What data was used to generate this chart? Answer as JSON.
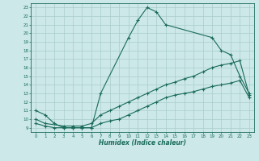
{
  "title": "",
  "xlabel": "Humidex (Indice chaleur)",
  "bg_color": "#cce8e8",
  "line_color": "#1a6b5a",
  "grid_color": "#aacccc",
  "xlim": [
    -0.5,
    23.5
  ],
  "ylim": [
    8.5,
    23.5
  ],
  "xticks": [
    0,
    1,
    2,
    3,
    4,
    5,
    6,
    7,
    8,
    9,
    10,
    11,
    12,
    13,
    14,
    15,
    16,
    17,
    18,
    19,
    20,
    21,
    22,
    23
  ],
  "yticks": [
    9,
    10,
    11,
    12,
    13,
    14,
    15,
    16,
    17,
    18,
    19,
    20,
    21,
    22,
    23
  ],
  "line1_x": [
    0,
    1,
    2,
    3,
    4,
    5,
    6,
    7,
    10,
    11,
    12,
    13,
    14,
    19,
    20,
    21,
    22,
    23
  ],
  "line1_y": [
    11,
    10.5,
    9.5,
    9,
    9,
    9,
    9,
    13,
    19.5,
    21.5,
    23,
    22.5,
    21,
    19.5,
    18,
    17.5,
    15,
    13
  ],
  "line2_x": [
    0,
    1,
    3,
    4,
    5,
    6,
    7,
    8,
    9,
    10,
    11,
    12,
    13,
    14,
    15,
    16,
    17,
    18,
    19,
    20,
    21,
    22,
    23
  ],
  "line2_y": [
    10,
    9.5,
    9.2,
    9.2,
    9.2,
    9.5,
    10.5,
    11,
    11.5,
    12,
    12.5,
    13,
    13.5,
    14,
    14.3,
    14.7,
    15,
    15.5,
    16,
    16.3,
    16.5,
    16.8,
    12.8
  ],
  "line3_x": [
    0,
    1,
    2,
    3,
    4,
    5,
    6,
    7,
    8,
    9,
    10,
    11,
    12,
    13,
    14,
    15,
    16,
    17,
    18,
    19,
    20,
    21,
    22,
    23
  ],
  "line3_y": [
    9.5,
    9.2,
    9.0,
    9.0,
    9.0,
    9.0,
    9.0,
    9.5,
    9.8,
    10,
    10.5,
    11,
    11.5,
    12,
    12.5,
    12.8,
    13,
    13.2,
    13.5,
    13.8,
    14,
    14.2,
    14.5,
    12.5
  ]
}
